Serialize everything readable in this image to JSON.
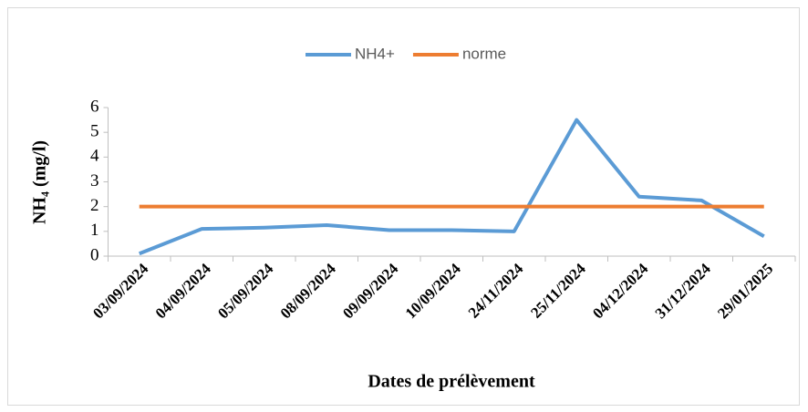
{
  "chart_data": {
    "type": "line",
    "y_label": "NH₄ (mg/l)",
    "x_label": "Dates de prélèvement",
    "categories": [
      "03/09/2024",
      "04/09/2024",
      "05/09/2024",
      "08/09/2024",
      "09/09/2024",
      "10/09/2024",
      "24/11/2024",
      "25/11/2024",
      "04/12/2024",
      "31/12/2024",
      "29/01/2025"
    ],
    "series": [
      {
        "name": "NH4+",
        "color": "#5b9bd5",
        "values": [
          0.1,
          1.1,
          1.15,
          1.25,
          1.05,
          1.05,
          1.0,
          5.5,
          2.4,
          2.25,
          0.8
        ]
      },
      {
        "name": "norme",
        "color": "#ed7d31",
        "values": [
          2,
          2,
          2,
          2,
          2,
          2,
          2,
          2,
          2,
          2,
          2
        ]
      }
    ],
    "ylim": [
      0,
      6
    ],
    "yticks": [
      0,
      1,
      2,
      3,
      4,
      5,
      6
    ],
    "grid": false,
    "legend": "top"
  }
}
